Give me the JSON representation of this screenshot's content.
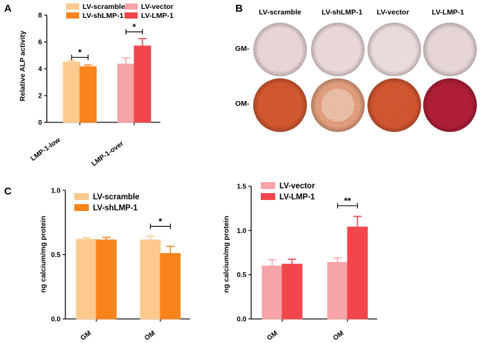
{
  "panel_labels": {
    "a": "A",
    "b": "B",
    "c": "C"
  },
  "colors": {
    "scramble": "#fcc98e",
    "shLMP1": "#f9841c",
    "vector": "#f6a4a7",
    "LMP1": "#f1474c",
    "dish_gm": "#eedfe0",
    "dish_om_scramble": "#d65a2e",
    "dish_om_shLMP1": "#e7a783",
    "dish_om_vector": "#d6582e",
    "dish_om_LMP1": "#b01a36"
  },
  "panel_b": {
    "columns": [
      "LV-scramble",
      "LV-shLMP-1",
      "LV-vector",
      "LV-LMP-1"
    ],
    "rows": [
      "GM-",
      "OM-"
    ]
  },
  "chart_data": [
    {
      "id": "panel-a",
      "type": "bar",
      "ylabel": "Relative ALP activity",
      "ylim": [
        0,
        8
      ],
      "yticks": [
        "0",
        "2",
        "4",
        "6",
        "8"
      ],
      "categories": [
        "LMP-1-low",
        "LMP-1-over"
      ],
      "legend": [
        "LV-scramble",
        "LV-vector",
        "LV-shLMP-1",
        "LV-LMP-1"
      ],
      "series": [
        {
          "name": "LV-scramble",
          "color": "#fcc98e",
          "values": [
            4.5,
            null
          ],
          "errors": [
            0.12,
            null
          ]
        },
        {
          "name": "LV-shLMP-1",
          "color": "#f9841c",
          "values": [
            4.15,
            null
          ],
          "errors": [
            0.13,
            null
          ]
        },
        {
          "name": "LV-vector",
          "color": "#f6a4a7",
          "values": [
            null,
            4.35
          ],
          "errors": [
            null,
            0.45
          ]
        },
        {
          "name": "LV-LMP-1",
          "color": "#f1474c",
          "values": [
            null,
            5.7
          ],
          "errors": [
            null,
            0.55
          ]
        }
      ],
      "significance": [
        {
          "category": "LMP-1-low",
          "label": "*",
          "y": 4.85
        },
        {
          "category": "LMP-1-over",
          "label": "*",
          "y": 6.75
        }
      ]
    },
    {
      "id": "panel-c-left",
      "type": "bar",
      "ylabel": "ng calcium/mg protein",
      "ylim": [
        0,
        1.0
      ],
      "yticks": [
        "0.0",
        "0.5",
        "1.0"
      ],
      "categories": [
        "GM",
        "OM"
      ],
      "legend": [
        "LV-scramble",
        "LV-shLMP-1"
      ],
      "series": [
        {
          "name": "LV-scramble",
          "color": "#fcc98e",
          "values": [
            0.62,
            0.615
          ],
          "errors": [
            0.012,
            0.03
          ]
        },
        {
          "name": "LV-shLMP-1",
          "color": "#f9841c",
          "values": [
            0.615,
            0.51
          ],
          "errors": [
            0.02,
            0.055
          ]
        }
      ],
      "significance": [
        {
          "category": "OM",
          "label": "*",
          "y": 0.72
        }
      ]
    },
    {
      "id": "panel-c-right",
      "type": "bar",
      "ylabel": "ng calcium/mg protein",
      "ylim": [
        0,
        1.5
      ],
      "yticks": [
        "0.0",
        "0.5",
        "1.0",
        "1.5"
      ],
      "categories": [
        "GM",
        "OM"
      ],
      "legend": [
        "LV-vector",
        "LV-LMP-1"
      ],
      "series": [
        {
          "name": "LV-vector",
          "color": "#f6a4a7",
          "values": [
            0.6,
            0.64
          ],
          "errors": [
            0.07,
            0.05
          ]
        },
        {
          "name": "LV-LMP-1",
          "color": "#f1474c",
          "values": [
            0.62,
            1.04
          ],
          "errors": [
            0.055,
            0.12
          ]
        }
      ],
      "significance": [
        {
          "category": "OM",
          "label": "**",
          "y": 1.28
        }
      ]
    }
  ]
}
